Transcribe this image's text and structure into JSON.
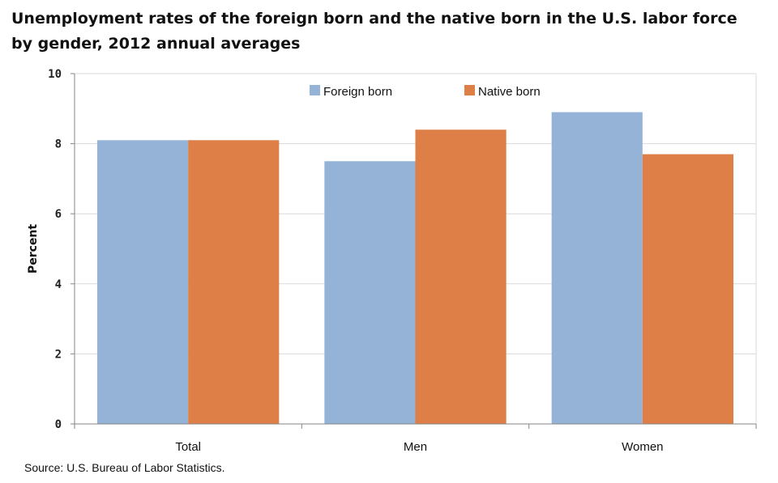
{
  "title": {
    "line1": "Unemployment rates of the foreign born and the native born in the U.S. labor force",
    "line2": "by gender, 2012 annual averages"
  },
  "source": "Source: U.S. Bureau of Labor Statistics.",
  "colors": {
    "foreign_born": "#95b3d7",
    "native_born": "#dd7f47",
    "grid": "#d9d9d9",
    "axis": "#868686"
  },
  "chart_data": {
    "type": "bar",
    "categories": [
      "Total",
      "Men",
      "Women"
    ],
    "series": [
      {
        "name": "Foreign born",
        "values": [
          8.1,
          7.5,
          8.9
        ]
      },
      {
        "name": "Native born",
        "values": [
          8.1,
          8.4,
          7.7
        ]
      }
    ],
    "ylabel": "Percent",
    "xlabel": "",
    "ylim": [
      0,
      10
    ],
    "yticks": [
      "0",
      "2",
      "4",
      "6",
      "8",
      "10"
    ],
    "grid": true,
    "legend": "top-center"
  }
}
